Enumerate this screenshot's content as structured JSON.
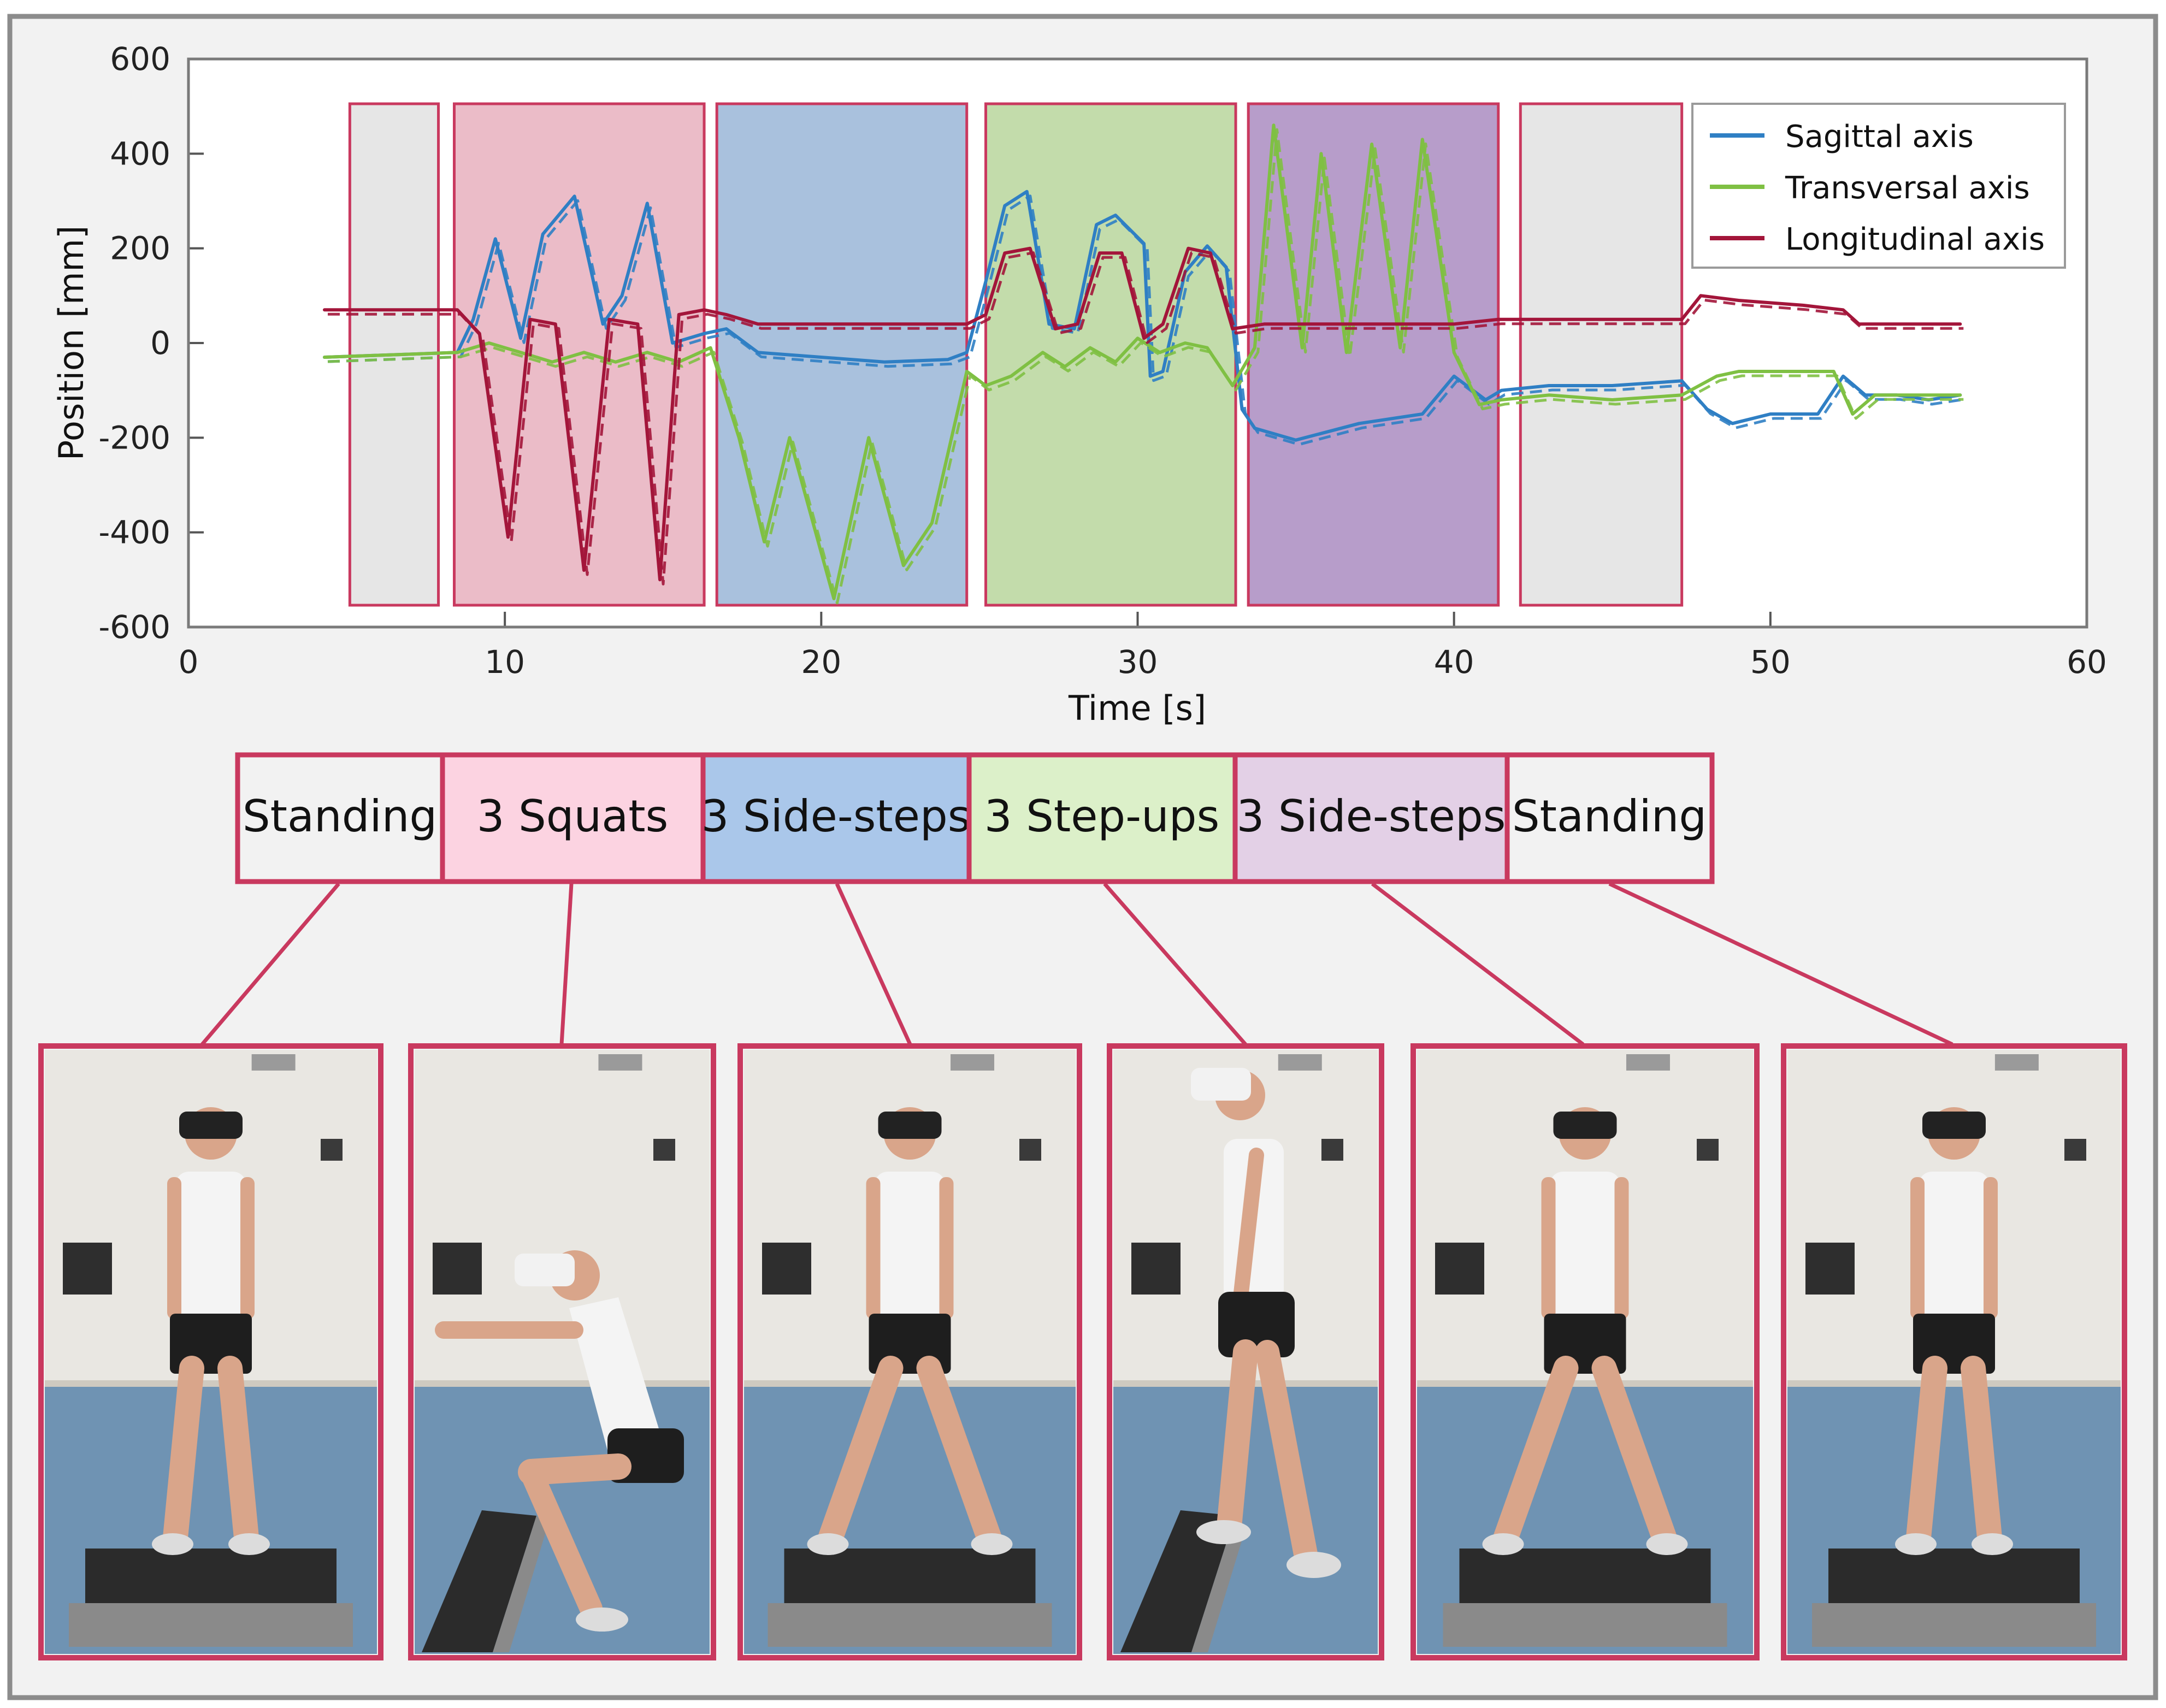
{
  "chart_data": {
    "type": "line",
    "xlabel": "Time [s]",
    "ylabel": "Position [mm]",
    "xlim": [
      0,
      60
    ],
    "ylim": [
      -600,
      600
    ],
    "xticks": [
      0,
      10,
      20,
      30,
      40,
      50,
      60
    ],
    "yticks": [
      600,
      400,
      200,
      0,
      -200,
      -400,
      -600
    ],
    "legend_position": "top-right",
    "legend": [
      {
        "name": "Sagittal axis",
        "color": "#2f7fc4"
      },
      {
        "name": "Transversal axis",
        "color": "#7fc043"
      },
      {
        "name": "Longitudinal axis",
        "color": "#a3153a"
      }
    ],
    "phases": [
      {
        "label": "Standing",
        "start": 5.1,
        "end": 7.9,
        "color": "#e6e6e6"
      },
      {
        "label": "3 Squats",
        "start": 8.4,
        "end": 16.3,
        "color": "#ebbcc8"
      },
      {
        "label": "3 Side-steps",
        "start": 16.7,
        "end": 24.6,
        "color": "#a9c1dd"
      },
      {
        "label": "3 Step-ups",
        "start": 25.2,
        "end": 33.1,
        "color": "#c3dcab"
      },
      {
        "label": "3 Side-steps",
        "start": 33.5,
        "end": 41.4,
        "color": "#b79dca"
      },
      {
        "label": "Standing",
        "start": 42.1,
        "end": 47.2,
        "color": "#e6e6e6"
      }
    ],
    "phase_label_colors": [
      "#f2f2f2",
      "#fcd3e1",
      "#aac7ea",
      "#dcf0c9",
      "#e3d0e6",
      "#f2f2f2"
    ],
    "series": [
      {
        "name": "Sagittal axis",
        "color": "#2f7fc4",
        "x": [
          4.3,
          8.5,
          9,
          9.7,
          10.5,
          11.2,
          12.2,
          13.1,
          13.7,
          14.5,
          15.3,
          16.3,
          17,
          18,
          20,
          22,
          24,
          24.6,
          25.2,
          25.8,
          26.5,
          27.2,
          28,
          28.7,
          29.3,
          30.2,
          30.4,
          30.8,
          31.5,
          32.2,
          32.8,
          33.3,
          33.7,
          35,
          37,
          39,
          40,
          41,
          41.5,
          43,
          45,
          47.2,
          48,
          48.8,
          50,
          51.5,
          52.3,
          53,
          54,
          55,
          56
        ],
        "y": [
          -30,
          -20,
          50,
          220,
          10,
          230,
          310,
          40,
          100,
          295,
          0,
          20,
          30,
          -20,
          -30,
          -40,
          -35,
          -20,
          130,
          290,
          320,
          40,
          30,
          250,
          270,
          210,
          -70,
          -60,
          150,
          205,
          160,
          -140,
          -180,
          -205,
          -170,
          -150,
          -70,
          -120,
          -100,
          -90,
          -90,
          -80,
          -140,
          -170,
          -150,
          -150,
          -70,
          -110,
          -110,
          -120,
          -110
        ]
      },
      {
        "name": "Transversal axis",
        "color": "#7fc043",
        "x": [
          4.3,
          8.5,
          9.5,
          10.5,
          11.5,
          12.5,
          13.5,
          14.5,
          15.5,
          16.5,
          17.4,
          18.2,
          19,
          20.4,
          21.5,
          22.6,
          23.5,
          24.6,
          25.2,
          26,
          27,
          27.7,
          28.5,
          29.3,
          30,
          30.7,
          31.5,
          32.2,
          33,
          33.7,
          34.3,
          35.2,
          35.8,
          36.6,
          37.4,
          38.3,
          39,
          40,
          40.8,
          41.5,
          43,
          45,
          47.2,
          48.3,
          49,
          50,
          51.5,
          52,
          52.6,
          53.3,
          54,
          55,
          56
        ],
        "y": [
          -30,
          -20,
          0,
          -20,
          -40,
          -20,
          -40,
          -20,
          -40,
          -10,
          -200,
          -420,
          -200,
          -540,
          -200,
          -470,
          -380,
          -60,
          -90,
          -70,
          -20,
          -50,
          -10,
          -40,
          10,
          -20,
          0,
          -10,
          -90,
          -10,
          460,
          -10,
          400,
          -20,
          420,
          -10,
          430,
          -20,
          -130,
          -120,
          -110,
          -120,
          -110,
          -70,
          -60,
          -60,
          -60,
          -60,
          -150,
          -110,
          -110,
          -110,
          -110
        ]
      },
      {
        "name": "Longitudinal axis",
        "color": "#a3153a",
        "x": [
          4.3,
          8.5,
          9.2,
          10.1,
          10.8,
          11.6,
          12.5,
          13.3,
          14.2,
          14.9,
          15.5,
          16.3,
          17,
          18,
          20,
          22,
          24,
          24.6,
          25.2,
          25.8,
          26.6,
          27.4,
          28.1,
          28.8,
          29.5,
          30.2,
          30.8,
          31.6,
          32.3,
          33,
          34,
          36,
          38,
          40,
          41.4,
          43,
          45,
          47.2,
          47.8,
          49,
          51,
          52.3,
          52.8,
          54,
          56
        ],
        "y": [
          70,
          70,
          20,
          -410,
          50,
          40,
          -480,
          50,
          40,
          -500,
          60,
          70,
          60,
          40,
          40,
          40,
          40,
          40,
          60,
          190,
          200,
          30,
          40,
          190,
          190,
          10,
          40,
          200,
          190,
          30,
          40,
          40,
          40,
          40,
          50,
          50,
          50,
          50,
          100,
          90,
          80,
          70,
          40,
          40,
          40
        ]
      }
    ]
  },
  "frame_colors": {
    "accent": "#c9395f",
    "outer_border": "#8c8c8c",
    "background": "#f2f2f2"
  },
  "photos": [
    {
      "icon": "person-standing-front-icon",
      "pose": "stand"
    },
    {
      "icon": "person-squat-side-icon",
      "pose": "squat"
    },
    {
      "icon": "person-side-step-icon",
      "pose": "wide"
    },
    {
      "icon": "person-step-up-side-icon",
      "pose": "stepup"
    },
    {
      "icon": "person-side-step-icon",
      "pose": "wide"
    },
    {
      "icon": "person-standing-front-icon",
      "pose": "stand"
    }
  ]
}
